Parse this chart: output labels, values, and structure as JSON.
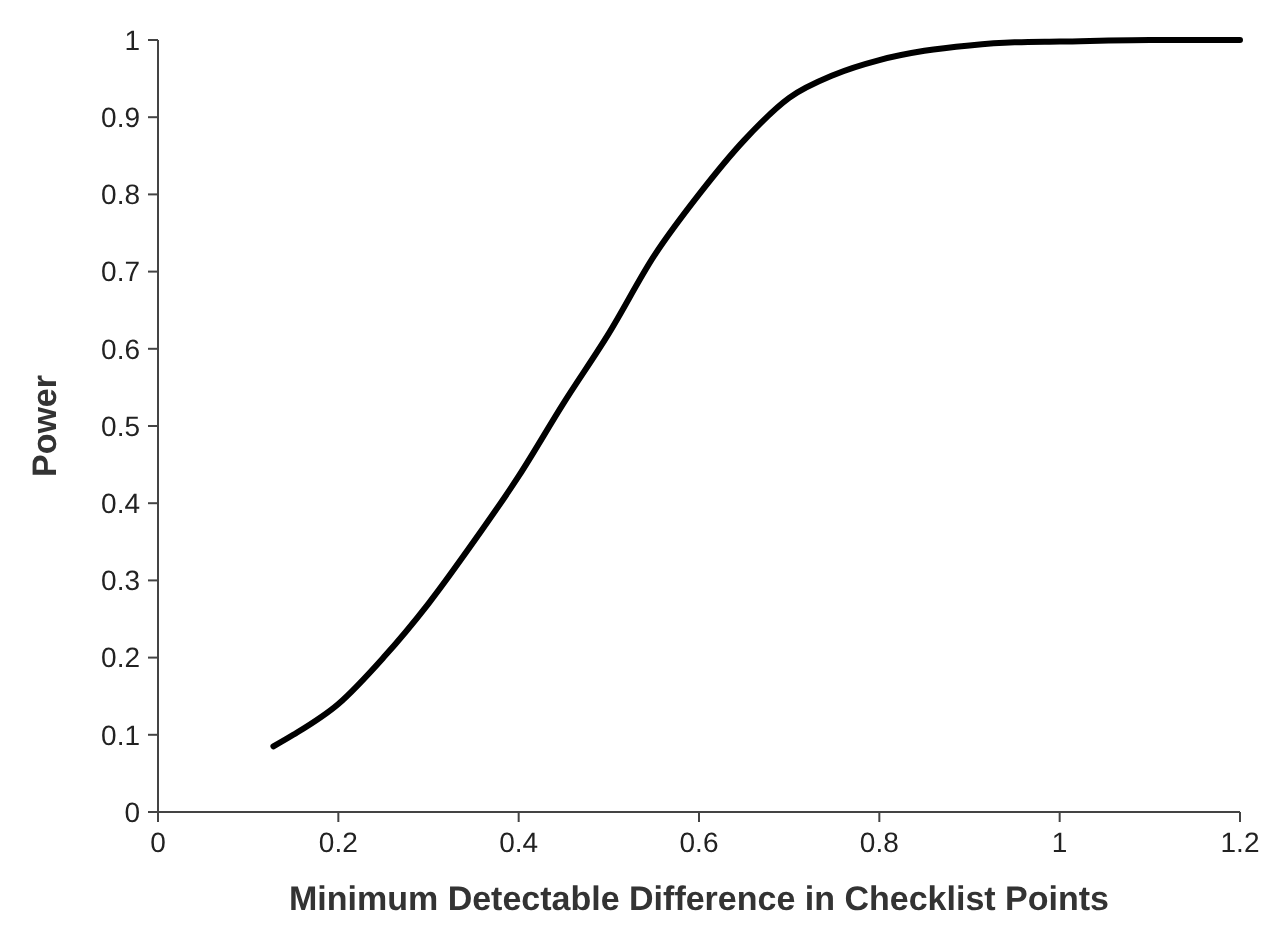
{
  "chart_data": {
    "type": "line",
    "xlabel": "Minimum Detectable Difference in Checklist Points",
    "ylabel": "Power",
    "x": [
      0.128,
      0.15,
      0.2,
      0.25,
      0.3,
      0.35,
      0.4,
      0.45,
      0.5,
      0.55,
      0.6,
      0.65,
      0.7,
      0.75,
      0.8,
      0.85,
      0.9,
      0.95,
      1.0,
      1.1,
      1.2
    ],
    "series": [
      {
        "color": "#000000",
        "values": [
          0.085,
          0.1,
          0.14,
          0.2,
          0.27,
          0.35,
          0.435,
          0.53,
          0.62,
          0.72,
          0.8,
          0.87,
          0.925,
          0.955,
          0.974,
          0.986,
          0.993,
          0.997,
          0.998,
          1.0,
          1.0
        ]
      }
    ],
    "xlim": [
      0,
      1.2
    ],
    "xticks": [
      0,
      0.2,
      0.4,
      0.6,
      0.8,
      1,
      1.2
    ],
    "ylim": [
      0,
      1
    ],
    "yticks": [
      0,
      0.1,
      0.2,
      0.3,
      0.4,
      0.5,
      0.6,
      0.7,
      0.8,
      0.9,
      1
    ],
    "grid": false,
    "marker": "none",
    "line_style": "solid"
  }
}
